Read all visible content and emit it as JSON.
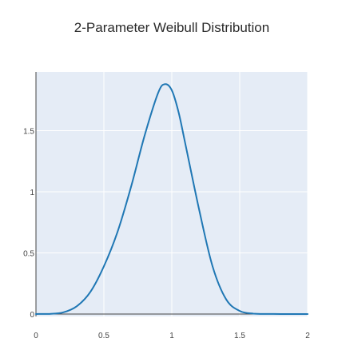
{
  "chart_data": {
    "type": "line",
    "title": "2-Parameter Weibull Distribution",
    "xlabel": "",
    "ylabel": "",
    "xlim": [
      0,
      2
    ],
    "ylim": [
      -0.02,
      1.98
    ],
    "x_ticks": [
      0,
      0.5,
      1,
      1.5,
      2
    ],
    "x_tick_labels": [
      "0",
      "0.5",
      "1",
      "1.5",
      "2"
    ],
    "y_ticks": [
      0,
      0.5,
      1,
      1.5
    ],
    "y_tick_labels": [
      "0",
      "0.5",
      "1",
      "1.5"
    ],
    "grid": true,
    "legend": "none",
    "colors": {
      "line": "#1f77b4",
      "plot_background": "#e5ecf6",
      "grid": "#ffffff",
      "axis": "#444444"
    },
    "series": [
      {
        "x": [
          0,
          0.1,
          0.2,
          0.3,
          0.4,
          0.5,
          0.6,
          0.7,
          0.8,
          0.9,
          0.95,
          1.0,
          1.05,
          1.1,
          1.2,
          1.3,
          1.4,
          1.5,
          1.6,
          1.7,
          1.8,
          1.9,
          2.0
        ],
        "y": [
          0,
          0.0008,
          0.013,
          0.063,
          0.18,
          0.39,
          0.67,
          1.04,
          1.46,
          1.81,
          1.88,
          1.83,
          1.65,
          1.39,
          0.86,
          0.39,
          0.12,
          0.025,
          0.003,
          0.0002,
          0,
          0,
          0
        ]
      }
    ]
  }
}
